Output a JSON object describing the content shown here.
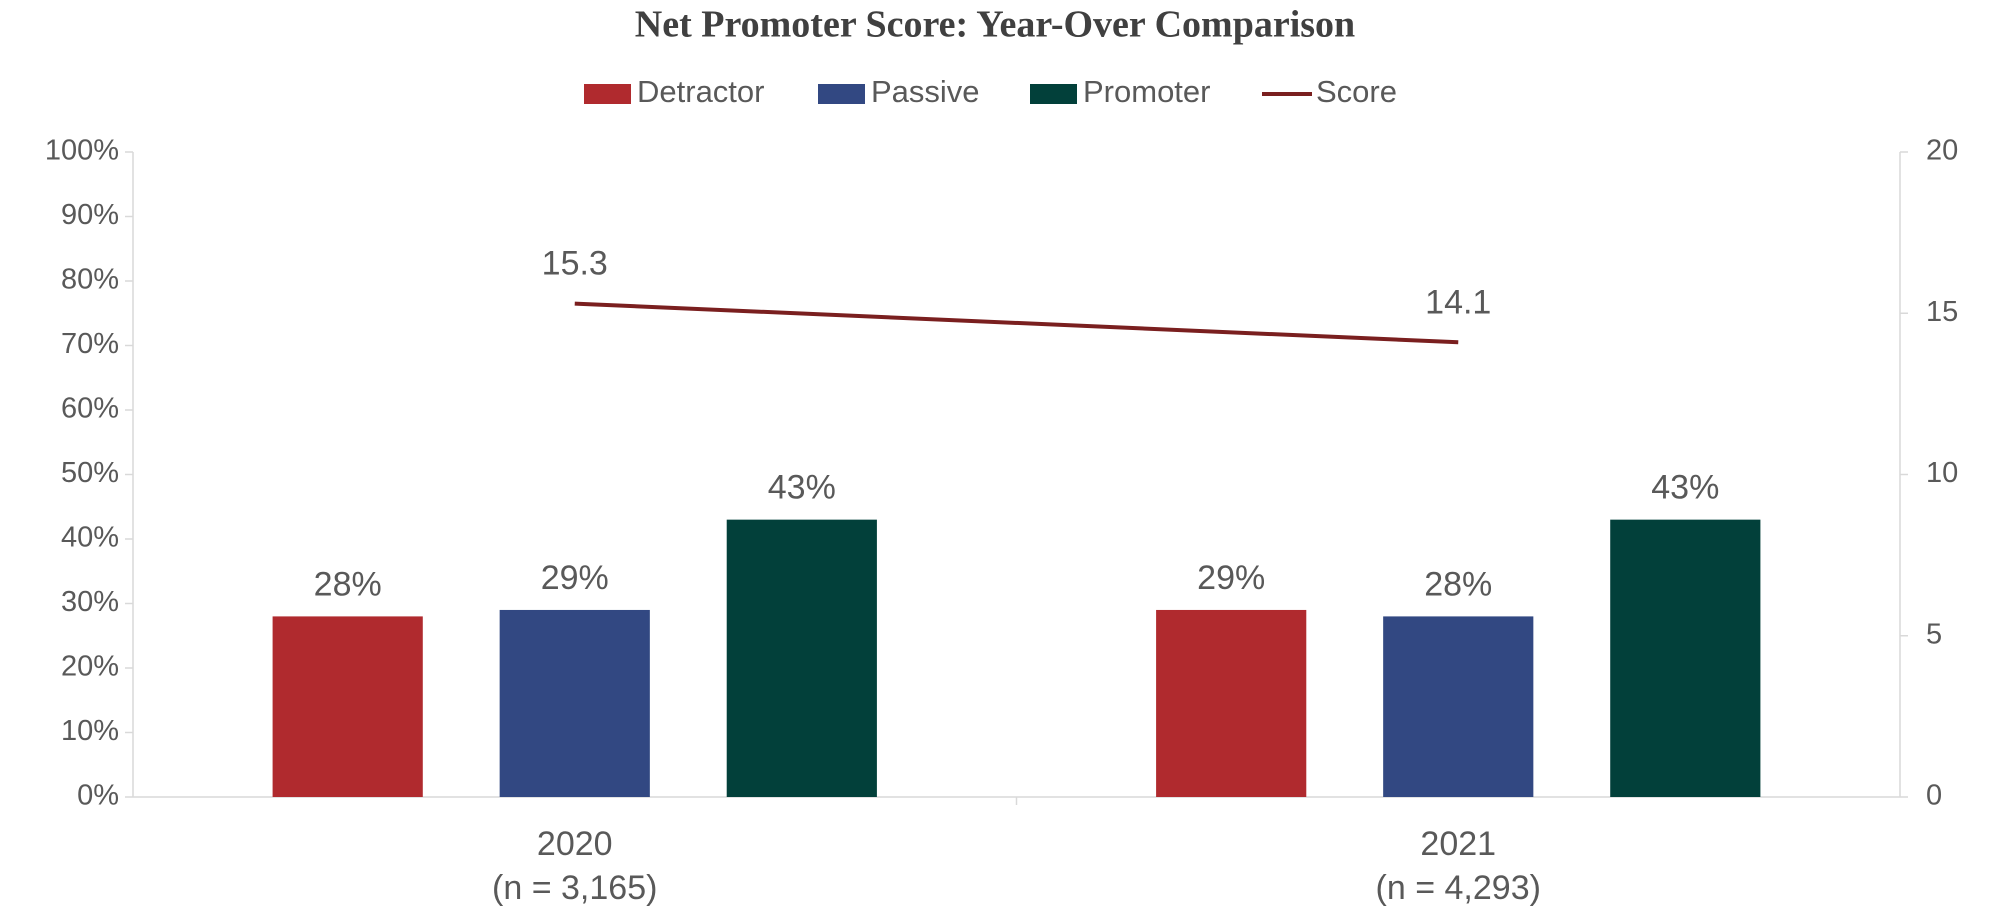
{
  "chart_data": {
    "type": "bar_line",
    "title": "Net Promoter Score: Year-Over Comparison",
    "categories": [
      "2020",
      "2021"
    ],
    "category_subtitles": [
      "(n = 3,165)",
      "(n = 4,293)"
    ],
    "series": [
      {
        "name": "Detractor",
        "color": "#b02a2e",
        "values": [
          28,
          29
        ],
        "value_labels": [
          "28%",
          "29%"
        ]
      },
      {
        "name": "Passive",
        "color": "#324882",
        "values": [
          29,
          28
        ],
        "value_labels": [
          "29%",
          "28%"
        ]
      },
      {
        "name": "Promoter",
        "color": "#02403a",
        "values": [
          43,
          43
        ],
        "value_labels": [
          "43%",
          "43%"
        ]
      },
      {
        "name": "Score",
        "type": "line",
        "axis": "y2",
        "color": "#7a1f1f",
        "values": [
          15.3,
          14.1
        ]
      }
    ],
    "ylim": [
      0,
      100
    ],
    "yticks": [
      {
        "value": 0,
        "label": "0%"
      },
      {
        "value": 10,
        "label": "10%"
      },
      {
        "value": 20,
        "label": "20%"
      },
      {
        "value": 30,
        "label": "30%"
      },
      {
        "value": 40,
        "label": "40%"
      },
      {
        "value": 50,
        "label": "50%"
      },
      {
        "value": 60,
        "label": "60%"
      },
      {
        "value": 70,
        "label": "70%"
      },
      {
        "value": 80,
        "label": "80%"
      },
      {
        "value": 90,
        "label": "90%"
      },
      {
        "value": 100,
        "label": "100%"
      }
    ],
    "y2lim": [
      0,
      20
    ],
    "y2ticks": [
      0,
      5,
      10,
      15,
      20
    ],
    "legend": "top"
  }
}
